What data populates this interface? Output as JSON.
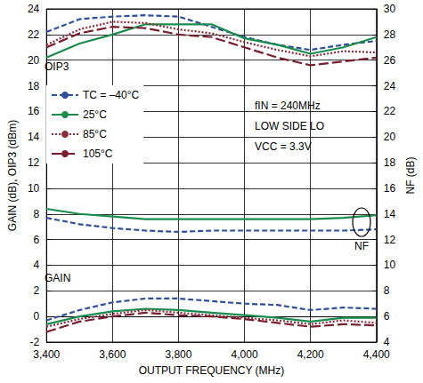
{
  "chart_data": {
    "type": "line",
    "xlabel": "OUTPUT FREQUENCY (MHz)",
    "ylabel": "GAIN (dB), OIP3 (dBm)",
    "y2label": "NF (dB)",
    "x": [
      3400,
      3500,
      3600,
      3700,
      3800,
      3900,
      4000,
      4100,
      4200,
      4300,
      4400
    ],
    "xlim": [
      3400,
      4400
    ],
    "xticks": [
      3400,
      3600,
      3800,
      4000,
      4200,
      4400
    ],
    "ylim": [
      -2,
      24
    ],
    "yticks": [
      -2,
      0,
      2,
      4,
      6,
      8,
      10,
      12,
      14,
      16,
      18,
      20,
      22,
      24
    ],
    "y2lim": [
      4,
      30
    ],
    "y2ticks": [
      4,
      6,
      8,
      10,
      12,
      14,
      16,
      18,
      20,
      22,
      24,
      26,
      28,
      30
    ],
    "grid": true,
    "legend": "upper left",
    "annotations": [
      "OIP3",
      "GAIN",
      "NF",
      "fIN = 240MHz",
      "LOW SIDE LO",
      "VCC = 3.3V"
    ],
    "series": [
      {
        "name": "TC = –40°C",
        "color": "#2e4e9e",
        "line_style": "dashed",
        "values": [
          22.2,
          23.2,
          23.4,
          23.5,
          23.4,
          22.6,
          21.8,
          21.2,
          20.8,
          21.2,
          21.5
        ]
      },
      {
        "name": "25°C",
        "color": "#1a8c4e",
        "line_style": "solid",
        "values": [
          20.2,
          21.3,
          22.0,
          22.8,
          22.8,
          22.8,
          21.7,
          21.2,
          20.5,
          21.0,
          21.8
        ]
      },
      {
        "name": "85°C",
        "color": "#8a2d3b",
        "line_style": "dotted",
        "values": [
          21.2,
          22.4,
          23.0,
          22.9,
          22.4,
          22.1,
          21.4,
          20.8,
          20.3,
          20.7,
          20.6
        ]
      },
      {
        "name": "105°C",
        "color": "#7a1c2c",
        "line_style": "long_dashed",
        "values": [
          21.0,
          22.1,
          22.6,
          22.5,
          22.0,
          21.8,
          21.0,
          20.2,
          19.6,
          19.9,
          20.2
        ]
      },
      {
        "name": "TC = –40°C",
        "color": "#2e4e9e",
        "line_style": "dashed",
        "axis": "y2",
        "values": [
          13.7,
          13.2,
          12.9,
          12.7,
          12.6,
          12.7,
          12.7,
          12.7,
          12.7,
          12.7,
          12.8
        ]
      },
      {
        "name": "25°C",
        "color": "#1a8c4e",
        "line_style": "solid",
        "axis": "y2",
        "values": [
          14.4,
          14.0,
          13.8,
          13.6,
          13.6,
          13.6,
          13.6,
          13.6,
          13.6,
          13.7,
          13.9
        ]
      },
      {
        "name": "TC = –40°C",
        "color": "#2e4e9e",
        "line_style": "dashed",
        "values": [
          -0.3,
          0.5,
          1.1,
          1.4,
          1.4,
          1.2,
          1.0,
          0.9,
          0.5,
          0.7,
          0.6
        ]
      },
      {
        "name": "25°C",
        "color": "#1a8c4e",
        "line_style": "solid",
        "values": [
          -0.6,
          0.0,
          0.4,
          0.6,
          0.5,
          0.3,
          0.1,
          -0.1,
          -0.4,
          -0.1,
          -0.1
        ]
      },
      {
        "name": "85°C",
        "color": "#8a2d3b",
        "line_style": "dotted",
        "values": [
          -0.8,
          -0.2,
          0.2,
          0.5,
          0.3,
          0.1,
          -0.1,
          -0.3,
          -0.6,
          -0.3,
          -0.5
        ]
      },
      {
        "name": "105°C",
        "color": "#7a1c2c",
        "line_style": "long_dashed",
        "values": [
          -1.2,
          -0.4,
          0.0,
          0.3,
          0.1,
          0.0,
          -0.2,
          -0.5,
          -0.8,
          -0.6,
          -0.7
        ]
      }
    ]
  }
}
